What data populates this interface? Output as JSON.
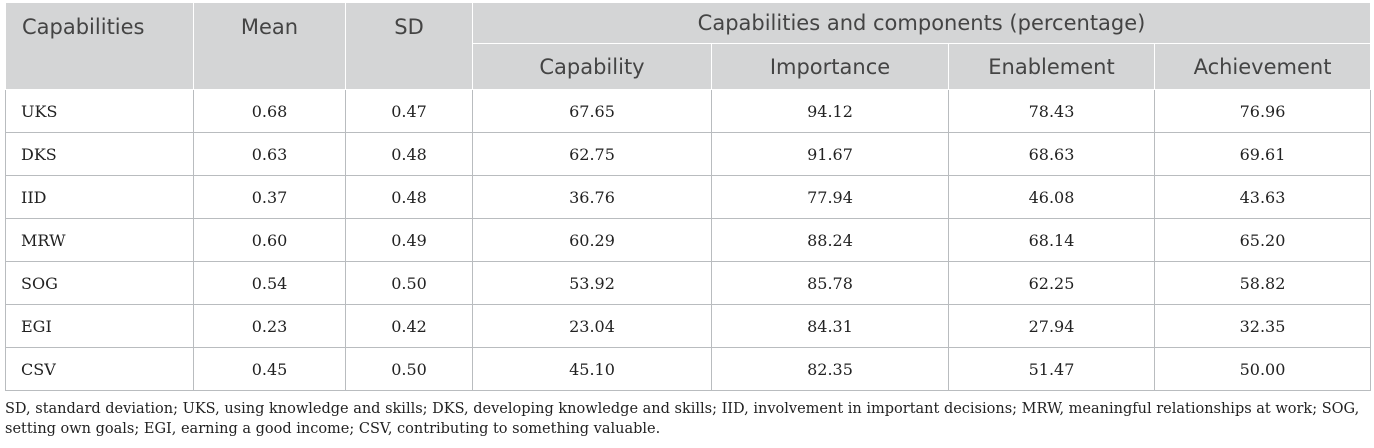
{
  "table": {
    "headers": {
      "capabilities": "Capabilities",
      "mean": "Mean",
      "sd": "SD",
      "group": "Capabilities and components (percentage)",
      "capability": "Capability",
      "importance": "Importance",
      "enablement": "Enablement",
      "achievement": "Achievement"
    },
    "rows": [
      {
        "name": "UKS",
        "mean": "0.68",
        "sd": "0.47",
        "capability": "67.65",
        "importance": "94.12",
        "enablement": "78.43",
        "achievement": "76.96"
      },
      {
        "name": "DKS",
        "mean": "0.63",
        "sd": "0.48",
        "capability": "62.75",
        "importance": "91.67",
        "enablement": "68.63",
        "achievement": "69.61"
      },
      {
        "name": "IID",
        "mean": "0.37",
        "sd": "0.48",
        "capability": "36.76",
        "importance": "77.94",
        "enablement": "46.08",
        "achievement": "43.63"
      },
      {
        "name": "MRW",
        "mean": "0.60",
        "sd": "0.49",
        "capability": "60.29",
        "importance": "88.24",
        "enablement": "68.14",
        "achievement": "65.20"
      },
      {
        "name": "SOG",
        "mean": "0.54",
        "sd": "0.50",
        "capability": "53.92",
        "importance": "85.78",
        "enablement": "62.25",
        "achievement": "58.82"
      },
      {
        "name": "EGI",
        "mean": "0.23",
        "sd": "0.42",
        "capability": "23.04",
        "importance": "84.31",
        "enablement": "27.94",
        "achievement": "32.35"
      },
      {
        "name": "CSV",
        "mean": "0.45",
        "sd": "0.50",
        "capability": "45.10",
        "importance": "82.35",
        "enablement": "51.47",
        "achievement": "50.00"
      }
    ]
  },
  "footnote": "SD, standard deviation; UKS, using knowledge and skills; DKS, developing knowledge and skills; IID, involvement in important decisions; MRW, meaningful relationships at work; SOG, setting own goals; EGI, earning a good income; CSV, contributing to something valuable."
}
